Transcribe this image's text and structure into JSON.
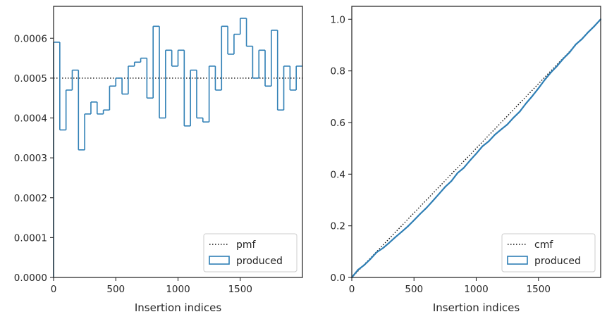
{
  "colors": {
    "step": "#2f7fb5",
    "reference": "#111111",
    "frame": "#262626",
    "legend_border": "#cccccc"
  },
  "chart_data": [
    {
      "type": "histogram-step",
      "xlabel": "Insertion indices",
      "ylabel": "",
      "xlim": [
        0,
        2000
      ],
      "ylim": [
        0,
        0.00068
      ],
      "xticks": [
        0,
        500,
        1000,
        1500
      ],
      "xtick_labels": [
        "0",
        "500",
        "1000",
        "1500"
      ],
      "yticks": [
        0,
        0.0001,
        0.0002,
        0.0003,
        0.0004,
        0.0005,
        0.0006
      ],
      "ytick_labels": [
        "0.0000",
        "0.0001",
        "0.0002",
        "0.0003",
        "0.0004",
        "0.0005",
        "0.0006"
      ],
      "bin_width": 50,
      "bin_edges_start": 0,
      "series": [
        {
          "name": "produced",
          "style": "step",
          "values": [
            0.00059,
            0.00037,
            0.00047,
            0.00052,
            0.00032,
            0.00041,
            0.00044,
            0.00041,
            0.00042,
            0.00048,
            0.0005,
            0.00046,
            0.00053,
            0.00054,
            0.00055,
            0.00045,
            0.00063,
            0.0004,
            0.00057,
            0.00053,
            0.00057,
            0.00038,
            0.00052,
            0.0004,
            0.00039,
            0.00053,
            0.00047,
            0.00063,
            0.00056,
            0.00061,
            0.00065,
            0.00058,
            0.0005,
            0.00057,
            0.00048,
            0.00062,
            0.00042,
            0.00053,
            0.00047,
            0.00053
          ]
        },
        {
          "name": "pmf",
          "style": "dotted",
          "value": 0.0005
        }
      ],
      "legend": {
        "placement": "bottom-right",
        "entries": [
          "pmf",
          "produced"
        ]
      }
    },
    {
      "type": "line",
      "xlabel": "Insertion indices",
      "ylabel": "",
      "xlim": [
        0,
        2000
      ],
      "ylim": [
        0,
        1.05
      ],
      "xticks": [
        0,
        500,
        1000,
        1500
      ],
      "xtick_labels": [
        "0",
        "500",
        "1000",
        "1500"
      ],
      "yticks": [
        0,
        0.2,
        0.4,
        0.6,
        0.8,
        1.0
      ],
      "ytick_labels": [
        "0.0",
        "0.2",
        "0.4",
        "0.6",
        "0.8",
        "1.0"
      ],
      "series": [
        {
          "name": "cmf",
          "style": "dotted",
          "x": [
            0,
            2000
          ],
          "y": [
            0,
            1.0
          ]
        },
        {
          "name": "produced",
          "style": "step",
          "x": [
            0,
            50,
            100,
            150,
            200,
            250,
            300,
            350,
            400,
            450,
            500,
            550,
            600,
            650,
            700,
            750,
            800,
            850,
            900,
            950,
            1000,
            1050,
            1100,
            1150,
            1200,
            1250,
            1300,
            1350,
            1400,
            1450,
            1500,
            1550,
            1600,
            1650,
            1700,
            1750,
            1800,
            1850,
            1900,
            1950,
            2000
          ],
          "y": [
            0.0,
            0.0295,
            0.048,
            0.0715,
            0.0975,
            0.1135,
            0.134,
            0.156,
            0.1765,
            0.1975,
            0.2215,
            0.2465,
            0.2695,
            0.296,
            0.323,
            0.3505,
            0.373,
            0.4045,
            0.4245,
            0.453,
            0.4795,
            0.508,
            0.527,
            0.553,
            0.573,
            0.5925,
            0.619,
            0.6425,
            0.674,
            0.702,
            0.7325,
            0.765,
            0.794,
            0.819,
            0.8475,
            0.8715,
            0.9025,
            0.9235,
            0.95,
            0.9735,
            1.0
          ]
        }
      ],
      "legend": {
        "placement": "bottom-right",
        "entries": [
          "cmf",
          "produced"
        ]
      }
    }
  ]
}
